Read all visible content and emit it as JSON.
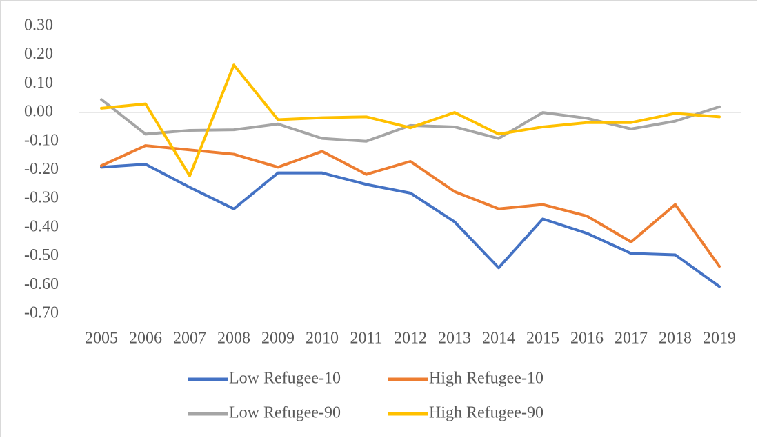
{
  "chart_data": {
    "type": "line",
    "categories": [
      "2005",
      "2006",
      "2007",
      "2008",
      "2009",
      "2010",
      "2011",
      "2012",
      "2013",
      "2014",
      "2015",
      "2016",
      "2017",
      "2018",
      "2019"
    ],
    "series": [
      {
        "name": "Low Refugee-10",
        "color": "#4472c4",
        "values": [
          -0.19,
          -0.18,
          -0.26,
          -0.335,
          -0.21,
          -0.21,
          -0.25,
          -0.28,
          -0.38,
          -0.54,
          -0.37,
          -0.42,
          -0.49,
          -0.495,
          -0.605
        ]
      },
      {
        "name": "High Refugee-10",
        "color": "#ed7d31",
        "values": [
          -0.185,
          -0.115,
          -0.13,
          -0.145,
          -0.19,
          -0.135,
          -0.215,
          -0.17,
          -0.275,
          -0.335,
          -0.32,
          -0.36,
          -0.45,
          -0.32,
          -0.535
        ]
      },
      {
        "name": "Low Refugee-90",
        "color": "#a5a5a5",
        "values": [
          0.045,
          -0.075,
          -0.062,
          -0.06,
          -0.04,
          -0.09,
          -0.1,
          -0.045,
          -0.05,
          -0.09,
          0.0,
          -0.02,
          -0.057,
          -0.03,
          0.02
        ]
      },
      {
        "name": "High Refugee-90",
        "color": "#ffc000",
        "values": [
          0.015,
          0.03,
          -0.22,
          0.165,
          -0.025,
          -0.018,
          -0.015,
          -0.053,
          0.0,
          -0.075,
          -0.05,
          -0.035,
          -0.035,
          -0.003,
          -0.015
        ]
      }
    ],
    "ylim": [
      -0.7,
      0.3
    ],
    "yticks": [
      {
        "value": 0.3,
        "label": "0.30"
      },
      {
        "value": 0.2,
        "label": "0.20"
      },
      {
        "value": 0.1,
        "label": "0.10"
      },
      {
        "value": 0,
        "label": "0.00"
      },
      {
        "value": -0.1,
        "label": "-0.10"
      },
      {
        "value": -0.2,
        "label": "-0.20"
      },
      {
        "value": -0.3,
        "label": "-0.30"
      },
      {
        "value": -0.4,
        "label": "-0.40"
      },
      {
        "value": -0.5,
        "label": "-0.50"
      },
      {
        "value": -0.6,
        "label": "-0.60"
      },
      {
        "value": -0.7,
        "label": "-0.70"
      }
    ],
    "grid": false,
    "legend": "bottom"
  }
}
